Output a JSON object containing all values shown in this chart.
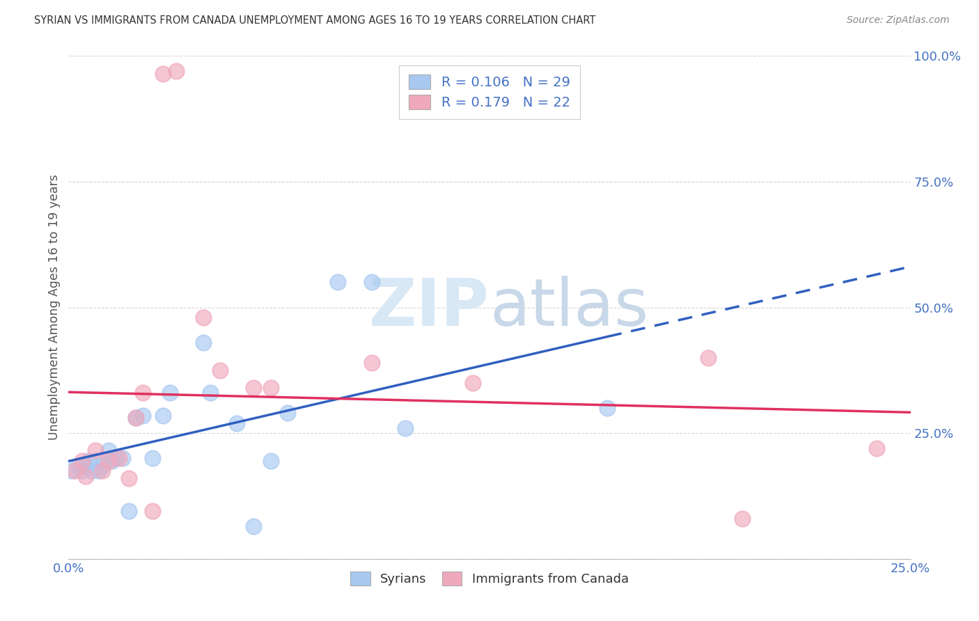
{
  "title": "SYRIAN VS IMMIGRANTS FROM CANADA UNEMPLOYMENT AMONG AGES 16 TO 19 YEARS CORRELATION CHART",
  "source": "Source: ZipAtlas.com",
  "ylabel": "Unemployment Among Ages 16 to 19 years",
  "xmin": 0.0,
  "xmax": 0.25,
  "ymin": 0.0,
  "ymax": 1.0,
  "xticks": [
    0.0,
    0.05,
    0.1,
    0.15,
    0.2,
    0.25
  ],
  "yticks": [
    0.0,
    0.25,
    0.5,
    0.75,
    1.0
  ],
  "xtick_labels": [
    "0.0%",
    "",
    "",
    "",
    "",
    "25.0%"
  ],
  "ytick_labels": [
    "",
    "25.0%",
    "50.0%",
    "75.0%",
    "100.0%"
  ],
  "syrians_R": 0.106,
  "syrians_N": 29,
  "canada_R": 0.179,
  "canada_N": 22,
  "syrians_color": "#A8C8F0",
  "canada_color": "#F0A8BC",
  "syrians_line_color": "#3060C0",
  "canada_line_color": "#E03060",
  "syrians_x": [
    0.001,
    0.003,
    0.004,
    0.005,
    0.006,
    0.007,
    0.008,
    0.009,
    0.01,
    0.012,
    0.013,
    0.014,
    0.016,
    0.018,
    0.02,
    0.022,
    0.025,
    0.028,
    0.03,
    0.04,
    0.042,
    0.05,
    0.055,
    0.06,
    0.065,
    0.08,
    0.09,
    0.1,
    0.16
  ],
  "syrians_y": [
    0.175,
    0.185,
    0.175,
    0.185,
    0.195,
    0.175,
    0.195,
    0.175,
    0.185,
    0.215,
    0.195,
    0.2,
    0.2,
    0.095,
    0.28,
    0.285,
    0.2,
    0.285,
    0.33,
    0.43,
    0.33,
    0.27,
    0.065,
    0.195,
    0.29,
    0.55,
    0.55,
    0.26,
    0.3
  ],
  "canada_x": [
    0.002,
    0.004,
    0.005,
    0.008,
    0.01,
    0.012,
    0.015,
    0.018,
    0.02,
    0.022,
    0.025,
    0.028,
    0.032,
    0.04,
    0.045,
    0.055,
    0.06,
    0.09,
    0.12,
    0.19,
    0.2,
    0.24
  ],
  "canada_y": [
    0.175,
    0.195,
    0.165,
    0.215,
    0.175,
    0.195,
    0.2,
    0.16,
    0.28,
    0.33,
    0.095,
    0.965,
    0.97,
    0.48,
    0.375,
    0.34,
    0.34,
    0.39,
    0.35,
    0.4,
    0.08,
    0.22
  ],
  "background_color": "#FFFFFF",
  "watermark_zip": "ZIP",
  "watermark_atlas": "atlas",
  "title_color": "#333333",
  "axis_label_color": "#555555",
  "tick_color": "#4472C4",
  "grid_color": "#CCCCCC"
}
